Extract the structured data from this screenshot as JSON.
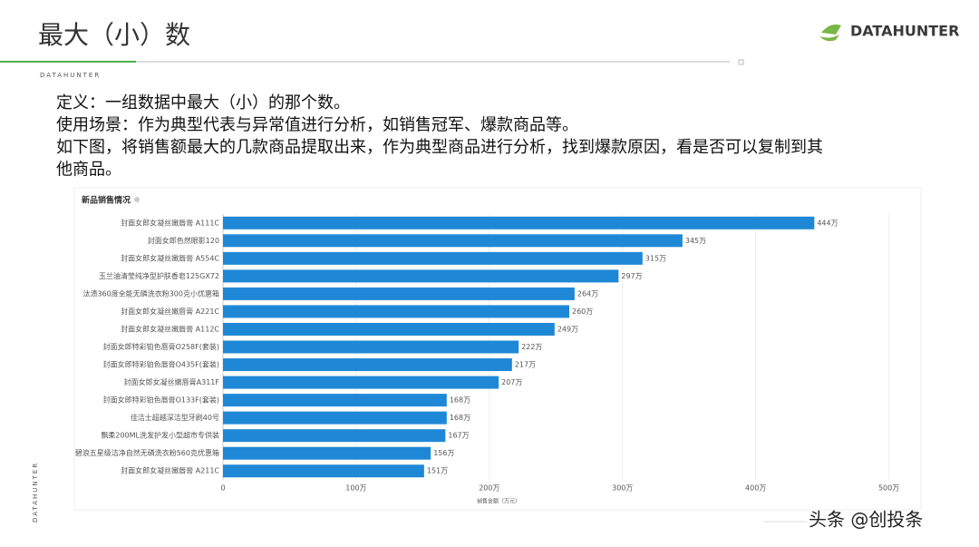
{
  "header": {
    "title": "最大（小）数",
    "logo": "DATAHUNTER",
    "brand": "DATAHUNTER",
    "side_brand": "DATAHUNTER"
  },
  "body": [
    "定义：一组数据中最大（小）的那个数。",
    "使用场景：作为典型代表与异常值进行分析，如销售冠军、爆款商品等。",
    "如下图，将销售额最大的几款商品提取出来，作为典型商品进行分析，找到爆款原因，看是否可以复制到其",
    "他商品。"
  ],
  "chart_data": {
    "type": "barh",
    "title": "新品销售情况",
    "x_label": "销售金额（万元）",
    "color": "#1f88d6",
    "categories": [
      "封面女郎女凝丝嫩唇膏 A111C",
      "封面女郎色然眼影120",
      "封面女郎女凝丝嫩唇膏 A554C",
      "玉兰油清莹纯净型护肤香皂125GX72",
      "汰渍360度全能无磷洗衣粉300克小优惠箱",
      "封面女郎女凝丝嫩唇膏 A221C",
      "封面女郎女凝丝嫩唇膏 A112C",
      "封面女郎特彩铂色唇膏O258F(套装)",
      "封面女郎特彩铂色唇膏O435F(套装)",
      "封面女郎女凝丝嫩唇膏A311F",
      "封面女郎特彩铂色唇膏O133F(套装)",
      "佳洁士超越深洁型牙刷40号",
      "飘柔200ML洗发护发小型超市专供装",
      "碧浪五星级洁净自然无磷洗衣粉560克优惠箱",
      "封面女郎女凝丝嫩唇膏 A211C"
    ],
    "values": [
      444,
      345,
      315,
      297,
      264,
      260,
      249,
      222,
      217,
      207,
      168,
      168,
      167,
      156,
      151
    ],
    "value_labels": [
      "444万",
      "345万",
      "315万",
      "297万",
      "264万",
      "260万",
      "249万",
      "222万",
      "217万",
      "207万",
      "168万",
      "168万",
      "167万",
      "156万",
      "151万"
    ],
    "xlim": [
      0,
      520
    ],
    "xticks": [
      0,
      {
        "value": 100,
        "label": "100万"
      },
      {
        "value": 200,
        "label": "200万"
      },
      {
        "value": 300,
        "label": "300万"
      },
      {
        "value": 400,
        "label": "400万"
      },
      {
        "value": 500,
        "label": "500万"
      }
    ],
    "grid": true
  },
  "watermark": "头条 @创投条"
}
